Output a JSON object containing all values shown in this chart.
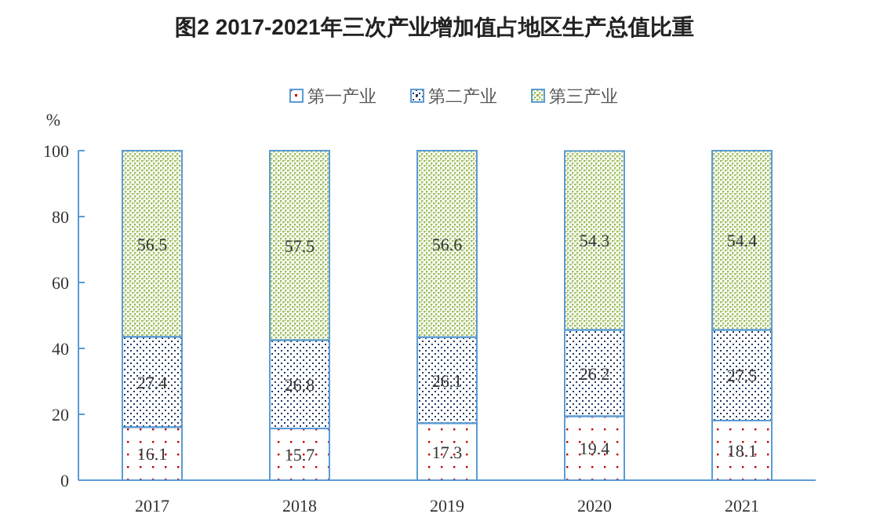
{
  "chart_data": {
    "type": "bar",
    "stacked": true,
    "title": "图2 2017-2021年三次产业增加值占地区生产总值比重",
    "ylabel": "%",
    "categories": [
      "2017",
      "2018",
      "2019",
      "2020",
      "2021"
    ],
    "series": [
      {
        "name": "第一产业",
        "color": "#c00000",
        "values": [
          16.1,
          15.7,
          17.3,
          19.4,
          18.1
        ]
      },
      {
        "name": "第二产业",
        "color": "#1f3864",
        "values": [
          27.4,
          26.8,
          26.1,
          26.2,
          27.5
        ]
      },
      {
        "name": "第三产业",
        "color": "#9bbb59",
        "values": [
          56.5,
          57.5,
          56.6,
          54.3,
          54.4
        ]
      }
    ],
    "ylim": [
      0,
      100
    ],
    "yticks": [
      0,
      20,
      40,
      60,
      80,
      100
    ],
    "data_labels": true,
    "legend": "top",
    "grid": false
  }
}
